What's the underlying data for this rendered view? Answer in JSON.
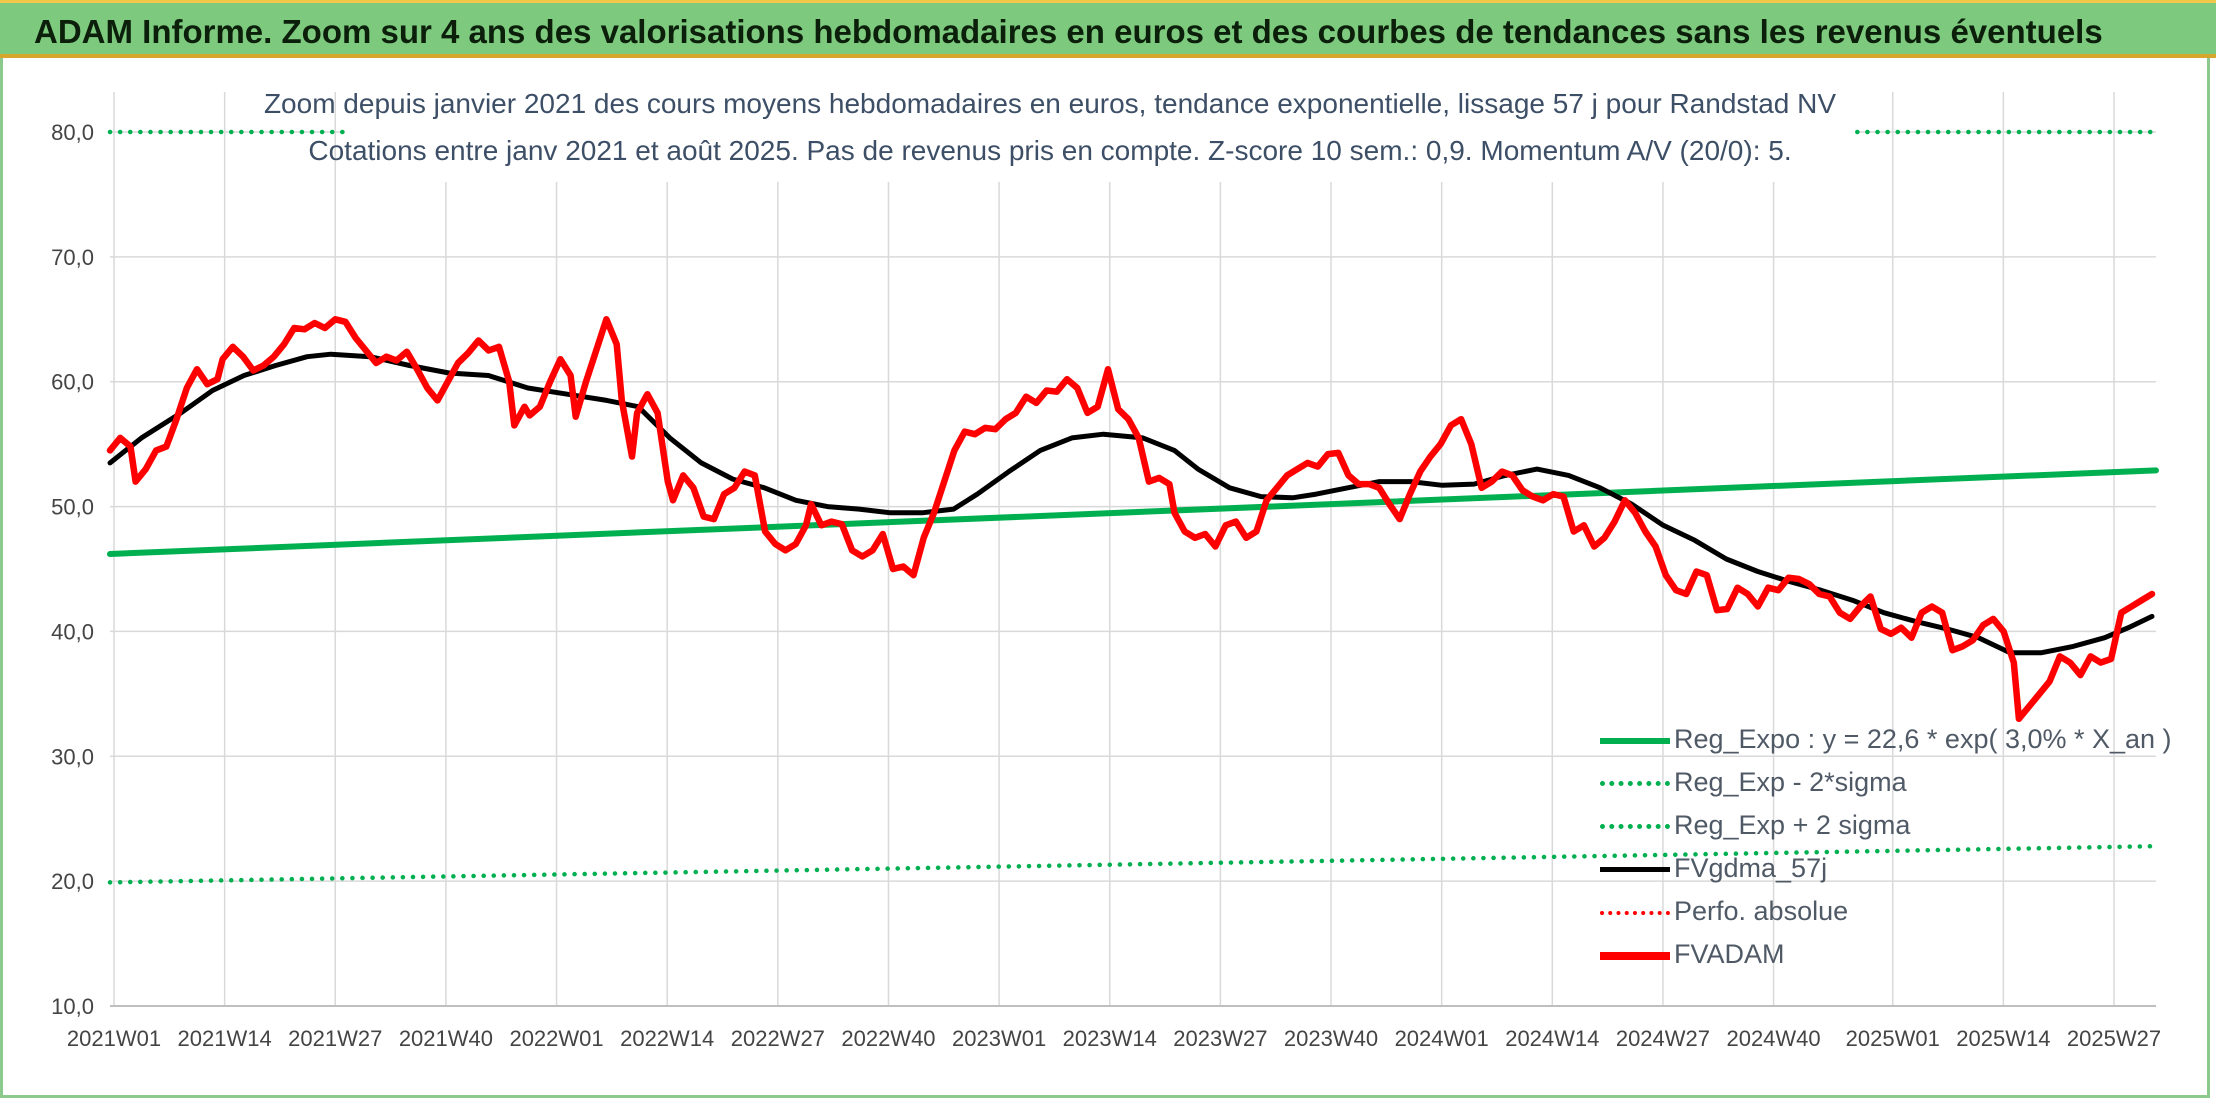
{
  "header": {
    "title": "ADAM Informe. Zoom sur 4 ans des valorisations hebdomadaires en euros et des courbes de tendances sans les revenus éventuels"
  },
  "chart_data": {
    "type": "line",
    "title_lines": [
      "Zoom depuis janvier 2021 des cours moyens hebdomadaires en euros, tendance exponentielle, lissage 57 j pour Randstad NV",
      "Cotations entre janv 2021 et août 2025. Pas de revenus pris en compte. Z-score 10 sem.: 0,9. Momentum A/V (20/0): 5."
    ],
    "y_ticks": [
      "10,0",
      "20,0",
      "30,0",
      "40,0",
      "50,0",
      "60,0",
      "70,0",
      "80,0"
    ],
    "ylim": [
      10,
      80
    ],
    "x_ticks": [
      "2021W01",
      "2021W14",
      "2021W27",
      "2021W40",
      "2022W01",
      "2022W14",
      "2022W27",
      "2022W40",
      "2023W01",
      "2023W14",
      "2023W27",
      "2023W40",
      "2024W01",
      "2024W14",
      "2024W27",
      "2024W40",
      "2025W01",
      "2025W14",
      "2025W27"
    ],
    "x_start": "2021W01",
    "x_end": "2025W35",
    "grid": true,
    "legend_position": "bottom-right",
    "colors": {
      "green": "#00b050",
      "black": "#000000",
      "red": "#ff0000",
      "grid": "#d9d9d9"
    },
    "legend": [
      {
        "label": "Reg_Expo : y = 22,6 * exp( 3,0% *  X_an )",
        "color": "#00b050",
        "style": "solid"
      },
      {
        "label": "Reg_Exp - 2*sigma",
        "color": "#00b050",
        "style": "dotted"
      },
      {
        "label": "Reg_Exp + 2 sigma",
        "color": "#00b050",
        "style": "dotted"
      },
      {
        "label": "FVgdma_57j",
        "color": "#000000",
        "style": "solid"
      },
      {
        "label": "Perfo. absolue",
        "color": "#ff0000",
        "style": "dotted"
      },
      {
        "label": "FVADAM",
        "color": "#ff0000",
        "style": "solid"
      }
    ],
    "series": [
      {
        "name": "Reg_Expo : y = 22,6 * exp( 3,0% *  X_an )",
        "style": "solid",
        "color": "#00b050",
        "points": [
          [
            0,
            46.2
          ],
          [
            240,
            52.9
          ]
        ]
      },
      {
        "name": "Reg_Exp - 2*sigma",
        "style": "dotted",
        "color": "#00b050",
        "points": [
          [
            0,
            19.9
          ],
          [
            240,
            22.8
          ]
        ]
      },
      {
        "name": "Reg_Exp + 2 sigma",
        "style": "dotted",
        "color": "#00b050",
        "points": [
          [
            0,
            80.0
          ],
          [
            240,
            80.0
          ]
        ]
      },
      {
        "name": "FVgdma_57j",
        "style": "solid",
        "color": "#000000",
        "points": [
          [
            0,
            53.5
          ],
          [
            4,
            55.5
          ],
          [
            9,
            57.5
          ],
          [
            13,
            59.3
          ],
          [
            17,
            60.5
          ],
          [
            21,
            61.3
          ],
          [
            25,
            62.0
          ],
          [
            28,
            62.2
          ],
          [
            33,
            62.0
          ],
          [
            38,
            61.3
          ],
          [
            43,
            60.7
          ],
          [
            48,
            60.5
          ],
          [
            53,
            59.5
          ],
          [
            58,
            59.0
          ],
          [
            63,
            58.5
          ],
          [
            67,
            58.0
          ],
          [
            71,
            55.5
          ],
          [
            75,
            53.5
          ],
          [
            79,
            52.2
          ],
          [
            83,
            51.5
          ],
          [
            87,
            50.5
          ],
          [
            91,
            50.0
          ],
          [
            95,
            49.8
          ],
          [
            99,
            49.5
          ],
          [
            103,
            49.5
          ],
          [
            107,
            49.8
          ],
          [
            110,
            51.0
          ],
          [
            114,
            52.8
          ],
          [
            118,
            54.5
          ],
          [
            122,
            55.5
          ],
          [
            126,
            55.8
          ],
          [
            131,
            55.5
          ],
          [
            135,
            54.5
          ],
          [
            138,
            53.0
          ],
          [
            142,
            51.5
          ],
          [
            146,
            50.8
          ],
          [
            150,
            50.7
          ],
          [
            153,
            51.0
          ],
          [
            157,
            51.5
          ],
          [
            161,
            52.0
          ],
          [
            165,
            52.0
          ],
          [
            169,
            51.7
          ],
          [
            173,
            51.8
          ],
          [
            177,
            52.5
          ],
          [
            181,
            53.0
          ],
          [
            185,
            52.5
          ],
          [
            189,
            51.5
          ],
          [
            193,
            50.2
          ],
          [
            197,
            48.5
          ],
          [
            201,
            47.3
          ],
          [
            205,
            45.8
          ],
          [
            209,
            44.8
          ],
          [
            213,
            44.0
          ],
          [
            217,
            43.3
          ],
          [
            221,
            42.5
          ],
          [
            225,
            41.5
          ],
          [
            229,
            40.8
          ],
          [
            233,
            40.2
          ],
          [
            237,
            39.5
          ],
          [
            241,
            38.3
          ],
          [
            245,
            38.3
          ],
          [
            249,
            38.8
          ],
          [
            253,
            39.5
          ],
          [
            256,
            40.3
          ],
          [
            259,
            41.2
          ]
        ]
      },
      {
        "name": "FVADAM",
        "style": "solid",
        "color": "#ff0000",
        "points": [
          [
            0,
            54.5
          ],
          [
            2,
            55.5
          ],
          [
            4,
            54.8
          ],
          [
            5,
            52.0
          ],
          [
            7,
            53.0
          ],
          [
            9,
            54.5
          ],
          [
            11,
            54.8
          ],
          [
            13,
            57.0
          ],
          [
            15,
            59.5
          ],
          [
            17,
            61.0
          ],
          [
            19,
            59.8
          ],
          [
            21,
            60.2
          ],
          [
            22,
            61.8
          ],
          [
            24,
            62.8
          ],
          [
            26,
            62.0
          ],
          [
            28,
            60.9
          ],
          [
            30,
            61.3
          ],
          [
            32,
            62.0
          ],
          [
            34,
            63.0
          ],
          [
            36,
            64.3
          ],
          [
            38,
            64.2
          ],
          [
            40,
            64.7
          ],
          [
            42,
            64.3
          ],
          [
            44,
            65.0
          ],
          [
            46,
            64.8
          ],
          [
            48,
            63.5
          ],
          [
            50,
            62.5
          ],
          [
            52,
            61.5
          ],
          [
            54,
            62.0
          ],
          [
            56,
            61.7
          ],
          [
            58,
            62.4
          ],
          [
            60,
            61.0
          ],
          [
            62,
            59.5
          ],
          [
            64,
            58.5
          ],
          [
            66,
            60.0
          ],
          [
            68,
            61.5
          ],
          [
            70,
            62.3
          ],
          [
            72,
            63.3
          ],
          [
            74,
            62.5
          ],
          [
            76,
            62.8
          ],
          [
            78,
            60.0
          ],
          [
            79,
            56.5
          ],
          [
            81,
            58.0
          ],
          [
            82,
            57.3
          ],
          [
            84,
            58.0
          ],
          [
            86,
            60.0
          ],
          [
            88,
            61.8
          ],
          [
            90,
            60.5
          ],
          [
            91,
            57.2
          ],
          [
            93,
            60.0
          ],
          [
            95,
            62.5
          ],
          [
            97,
            65.0
          ],
          [
            99,
            63.0
          ],
          [
            100,
            58.5
          ],
          [
            102,
            54.0
          ],
          [
            103,
            57.5
          ],
          [
            105,
            59.0
          ],
          [
            107,
            57.5
          ],
          [
            109,
            52.0
          ],
          [
            110,
            50.5
          ],
          [
            112,
            52.5
          ],
          [
            114,
            51.5
          ],
          [
            116,
            49.2
          ],
          [
            118,
            49.0
          ],
          [
            120,
            51.0
          ],
          [
            122,
            51.5
          ],
          [
            124,
            52.8
          ],
          [
            126,
            52.5
          ],
          [
            128,
            48.0
          ],
          [
            130,
            47.0
          ],
          [
            132,
            46.5
          ],
          [
            134,
            47.0
          ],
          [
            136,
            48.5
          ],
          [
            137,
            50.2
          ],
          [
            139,
            48.5
          ],
          [
            141,
            48.8
          ],
          [
            143,
            48.6
          ],
          [
            145,
            46.5
          ],
          [
            147,
            46.0
          ],
          [
            149,
            46.5
          ],
          [
            151,
            47.8
          ],
          [
            153,
            45.0
          ],
          [
            155,
            45.2
          ],
          [
            157,
            44.5
          ],
          [
            159,
            47.5
          ],
          [
            161,
            49.5
          ],
          [
            163,
            52.0
          ],
          [
            165,
            54.5
          ],
          [
            167,
            56.0
          ],
          [
            169,
            55.8
          ],
          [
            171,
            56.3
          ],
          [
            173,
            56.2
          ],
          [
            175,
            57.0
          ],
          [
            177,
            57.5
          ],
          [
            179,
            58.8
          ],
          [
            181,
            58.3
          ],
          [
            183,
            59.3
          ],
          [
            185,
            59.2
          ],
          [
            187,
            60.2
          ],
          [
            189,
            59.5
          ],
          [
            191,
            57.5
          ],
          [
            193,
            58.0
          ],
          [
            195,
            61.0
          ],
          [
            197,
            57.8
          ],
          [
            199,
            57.0
          ],
          [
            201,
            55.5
          ],
          [
            203,
            52.0
          ],
          [
            205,
            52.3
          ],
          [
            207,
            51.8
          ],
          [
            208,
            49.5
          ],
          [
            210,
            48.0
          ],
          [
            212,
            47.5
          ],
          [
            214,
            47.8
          ],
          [
            216,
            46.8
          ],
          [
            218,
            48.5
          ],
          [
            220,
            48.8
          ],
          [
            222,
            47.5
          ],
          [
            224,
            48.0
          ],
          [
            226,
            50.5
          ],
          [
            228,
            51.5
          ],
          [
            230,
            52.5
          ],
          [
            232,
            53.0
          ],
          [
            234,
            53.5
          ],
          [
            236,
            53.2
          ],
          [
            238,
            54.2
          ],
          [
            240,
            54.3
          ],
          [
            242,
            52.5
          ],
          [
            244,
            51.8
          ],
          [
            246,
            51.8
          ],
          [
            248,
            51.5
          ],
          [
            250,
            50.2
          ],
          [
            252,
            49.0
          ],
          [
            254,
            51.0
          ],
          [
            256,
            52.8
          ],
          [
            258,
            54.0
          ],
          [
            260,
            55.0
          ],
          [
            262,
            56.5
          ],
          [
            264,
            57.0
          ],
          [
            266,
            55.0
          ],
          [
            268,
            51.5
          ],
          [
            270,
            52.0
          ],
          [
            272,
            52.8
          ],
          [
            274,
            52.5
          ],
          [
            276,
            51.3
          ],
          [
            278,
            50.8
          ],
          [
            280,
            50.5
          ],
          [
            282,
            51.0
          ],
          [
            284,
            50.8
          ],
          [
            286,
            48.0
          ],
          [
            288,
            48.5
          ],
          [
            290,
            46.8
          ],
          [
            292,
            47.5
          ],
          [
            294,
            48.8
          ],
          [
            296,
            50.5
          ],
          [
            298,
            49.5
          ],
          [
            300,
            48.0
          ],
          [
            302,
            46.8
          ],
          [
            304,
            44.5
          ],
          [
            306,
            43.3
          ],
          [
            308,
            43.0
          ],
          [
            310,
            44.8
          ],
          [
            312,
            44.5
          ],
          [
            314,
            41.7
          ],
          [
            316,
            41.8
          ],
          [
            318,
            43.5
          ],
          [
            320,
            43.0
          ],
          [
            322,
            42.0
          ],
          [
            324,
            43.5
          ],
          [
            326,
            43.3
          ],
          [
            328,
            44.3
          ],
          [
            330,
            44.2
          ],
          [
            332,
            43.8
          ],
          [
            334,
            43.0
          ],
          [
            336,
            42.8
          ],
          [
            338,
            41.5
          ],
          [
            340,
            41.0
          ],
          [
            342,
            42.0
          ],
          [
            344,
            42.8
          ],
          [
            346,
            40.2
          ],
          [
            348,
            39.8
          ],
          [
            350,
            40.3
          ],
          [
            352,
            39.5
          ],
          [
            354,
            41.5
          ],
          [
            356,
            42.0
          ],
          [
            358,
            41.5
          ],
          [
            360,
            38.5
          ],
          [
            362,
            38.8
          ],
          [
            364,
            39.3
          ],
          [
            366,
            40.5
          ],
          [
            368,
            41.0
          ],
          [
            370,
            40.0
          ],
          [
            372,
            37.5
          ],
          [
            373,
            33.0
          ],
          [
            375,
            34.0
          ],
          [
            377,
            35.0
          ],
          [
            379,
            36.0
          ],
          [
            381,
            38.0
          ],
          [
            383,
            37.5
          ],
          [
            385,
            36.5
          ],
          [
            387,
            38.0
          ],
          [
            389,
            37.5
          ],
          [
            391,
            37.8
          ],
          [
            393,
            41.5
          ],
          [
            395,
            42.0
          ],
          [
            397,
            42.5
          ],
          [
            399,
            43.0
          ]
        ]
      }
    ]
  }
}
